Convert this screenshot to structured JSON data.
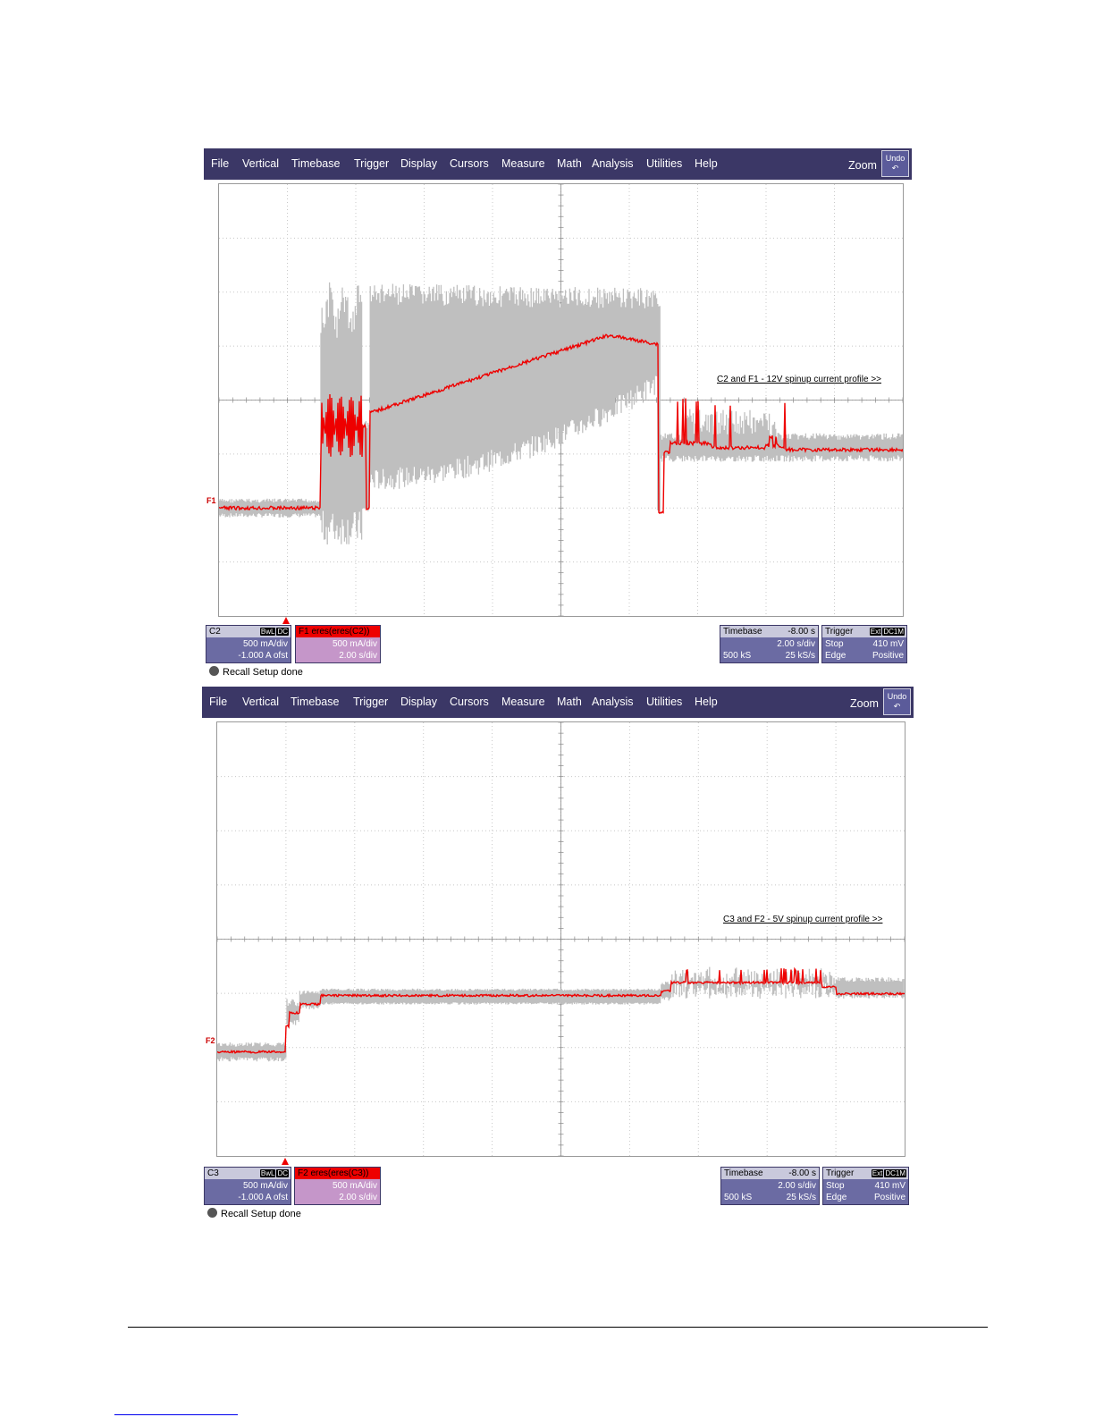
{
  "menu": [
    "File",
    "Vertical",
    "Timebase",
    "Trigger",
    "Display",
    "Cursors",
    "Measure",
    "Math",
    "Analysis",
    "Utilities",
    "Help"
  ],
  "zoom_label": "Zoom",
  "undo_label": "Undo",
  "scopes": [
    {
      "annotation": "C2 and F1 - 12V spinup current profile >>",
      "math_marker": "F1",
      "channel": {
        "name": "C2",
        "tags": [
          "BwL",
          "DC"
        ],
        "scale": "500 mA/div",
        "offset": "-1.000 A ofst"
      },
      "math": {
        "title": "F1   eres(eres(C2))",
        "scale": "500 mA/div",
        "time": "2.00 s/div"
      },
      "timebase": {
        "label": "Timebase",
        "delay": "-8.00 s",
        "per_div": "2.00 s/div",
        "samples": "500 kS",
        "rate": "25 kS/s"
      },
      "trigger": {
        "label": "Trigger",
        "tags": [
          "Ext",
          "DC1M"
        ],
        "mode": "Stop",
        "level": "410 mV",
        "type": "Edge",
        "slope": "Positive"
      },
      "status": "Recall Setup done"
    },
    {
      "annotation": "C3 and F2 - 5V spinup current profile >>",
      "math_marker": "F2",
      "channel": {
        "name": "C3",
        "tags": [
          "BwL",
          "DC"
        ],
        "scale": "500 mA/div",
        "offset": "-1.000 A ofst"
      },
      "math": {
        "title": "F2   eres(eres(C3))",
        "scale": "500 mA/div",
        "time": "2.00 s/div"
      },
      "timebase": {
        "label": "Timebase",
        "delay": "-8.00 s",
        "per_div": "2.00 s/div",
        "samples": "500 kS",
        "rate": "25 kS/s"
      },
      "trigger": {
        "label": "Trigger",
        "tags": [
          "Ext",
          "DC1M"
        ],
        "mode": "Stop",
        "level": "410 mV",
        "type": "Edge",
        "slope": "Positive"
      },
      "status": "Recall Setup done"
    }
  ],
  "colors": {
    "menubar": "#3b3766",
    "trace_raw": "#bfbfbf",
    "trace_math": "#ee0000"
  }
}
